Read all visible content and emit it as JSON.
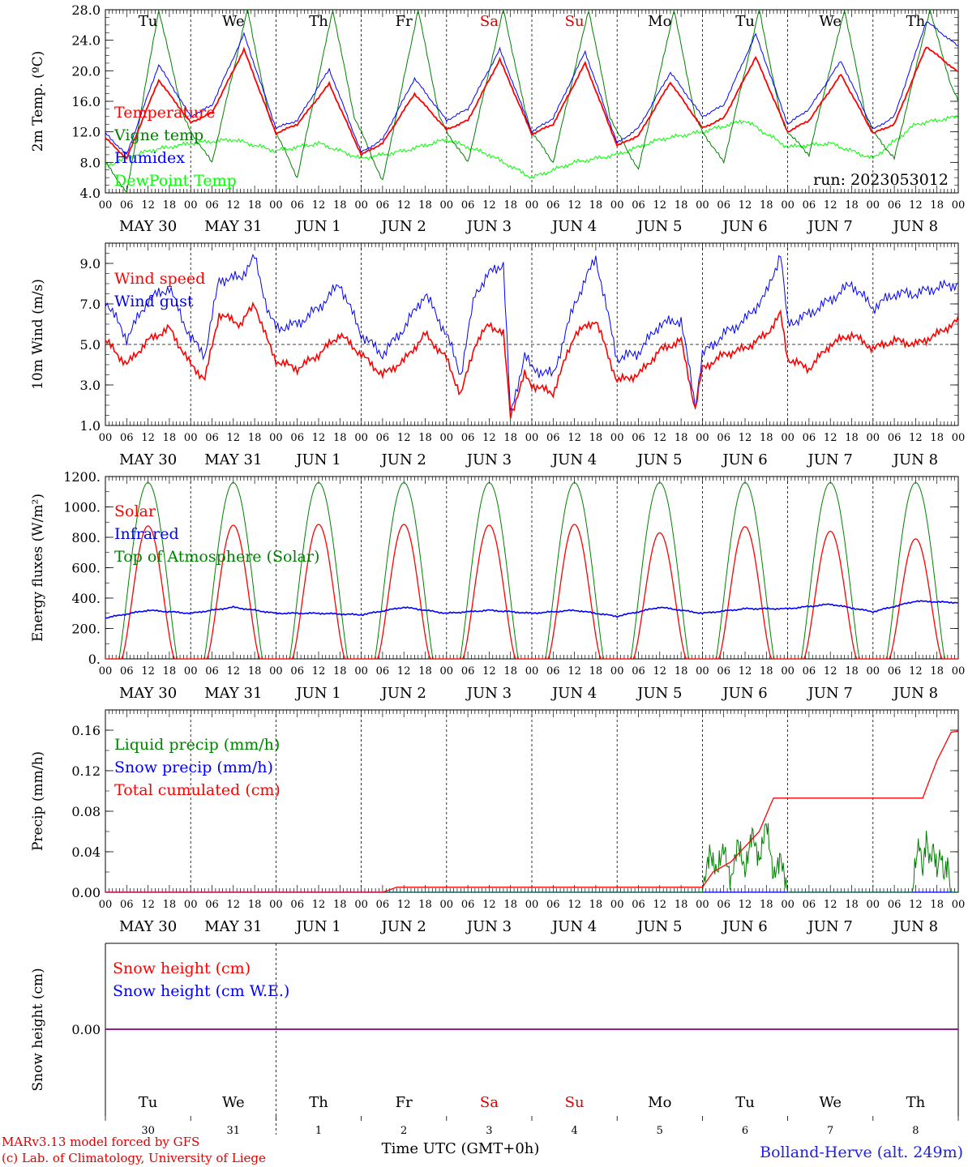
{
  "footer": {
    "model": "MARv3.13 model forced by GFS",
    "lab": "(c) Lab. of Climatology, University of Liege",
    "time_axis": "Time UTC (GMT+0h)",
    "station": "Bolland-Herve (alt. 249m)"
  },
  "x_axis": {
    "hour_ticks": [
      "00",
      "06",
      "12",
      "18"
    ],
    "date_labels": [
      "MAY 30",
      "MAY 31",
      "JUN  1",
      "JUN  2",
      "JUN  3",
      "JUN  4",
      "JUN  5",
      "JUN  6",
      "JUN  7",
      "JUN  8"
    ],
    "weekdays": [
      "Tu",
      "We",
      "Th",
      "Fr",
      "Sa",
      "Su",
      "Mo",
      "Tu",
      "We",
      "Th"
    ],
    "weekend_days": [
      4,
      5
    ],
    "day_numbers": [
      "30",
      "31",
      "1",
      "2",
      "3",
      "4",
      "5",
      "6",
      "7",
      "8"
    ],
    "weekend_color": "#e00000"
  },
  "colors": {
    "red": "#ff0000",
    "green": "#008000",
    "blue": "#0000ff",
    "lightgreen": "#00ff00",
    "purple": "#800080"
  },
  "chart_data": [
    {
      "type": "line",
      "ylabel": "2m Temp. (ºC)",
      "ylim": [
        4,
        28
      ],
      "yticks": [
        "4.0",
        "8.0",
        "12.0",
        "16.0",
        "20.0",
        "24.0",
        "28.0"
      ],
      "run_label": "run: 2023053012",
      "x_unit": "hours since MAY 30 00 UTC",
      "series": [
        {
          "name": "Temperature",
          "color": "#ff0000",
          "x": [
            0,
            6,
            15,
            24,
            30,
            39,
            48,
            54,
            63,
            72,
            78,
            87,
            96,
            102,
            111,
            120,
            126,
            135,
            144,
            150,
            159,
            168,
            174,
            183,
            192,
            198,
            207,
            216,
            222,
            231,
            240
          ],
          "values": [
            11.2,
            8.5,
            18.8,
            13.2,
            14.5,
            22.8,
            11.8,
            13,
            18.3,
            9,
            10.5,
            17,
            12.3,
            13.5,
            21.5,
            11.7,
            13,
            21,
            10.2,
            11.5,
            18.5,
            12.5,
            13.8,
            21.8,
            12,
            13.5,
            19.5,
            11.8,
            13,
            23.2,
            19.8
          ]
        },
        {
          "name": "Vigne temp",
          "color": "#008000",
          "x": [
            0,
            6,
            15,
            22,
            24,
            30,
            40,
            46,
            48,
            54,
            64,
            70,
            72,
            78,
            88,
            94,
            96,
            102,
            112,
            118,
            120,
            126,
            136,
            142,
            144,
            150,
            160,
            166,
            168,
            174,
            184,
            190,
            192,
            198,
            208,
            214,
            216,
            222,
            232,
            238,
            240
          ],
          "values": [
            8,
            4,
            28,
            14,
            12,
            8,
            28,
            14,
            12,
            6,
            28,
            14,
            12,
            5.5,
            28,
            14,
            12,
            8,
            28,
            15,
            12,
            8,
            28,
            14,
            12,
            7,
            28,
            14,
            12,
            8,
            28,
            14,
            12,
            9,
            28,
            14,
            12,
            8.5,
            28,
            18,
            16
          ]
        },
        {
          "name": "Humidex",
          "color": "#0000ff",
          "x": [
            0,
            6,
            15,
            24,
            30,
            39,
            48,
            54,
            63,
            72,
            78,
            87,
            96,
            102,
            111,
            120,
            126,
            135,
            144,
            150,
            159,
            168,
            174,
            183,
            192,
            198,
            207,
            216,
            222,
            231,
            240
          ],
          "values": [
            11.8,
            9,
            20.8,
            14,
            15.5,
            24.8,
            12.5,
            13.5,
            20.2,
            9.3,
            11,
            19,
            13.5,
            15,
            22.8,
            12,
            13.8,
            22.5,
            10.5,
            12.5,
            19.8,
            14,
            15.5,
            24.8,
            13,
            15,
            21.3,
            12.3,
            14,
            26.5,
            23.2
          ]
        },
        {
          "name": "DewPoint Temp",
          "color": "#00ff00",
          "x": [
            0,
            12,
            24,
            36,
            48,
            60,
            72,
            84,
            96,
            108,
            120,
            132,
            144,
            156,
            168,
            180,
            192,
            204,
            216,
            228,
            240
          ],
          "values": [
            7.5,
            9.5,
            10.5,
            11,
            9.5,
            10.5,
            8.5,
            9.5,
            11,
            9,
            6,
            8,
            9,
            11,
            12,
            13.5,
            10,
            10.5,
            8.5,
            13,
            14
          ]
        }
      ]
    },
    {
      "type": "line",
      "ylabel": "10m Wind (m/s)",
      "ylim": [
        1,
        10
      ],
      "yticks": [
        "1.0",
        "3.0",
        "5.0",
        "7.0",
        "9.0"
      ],
      "reference_line": 5.0,
      "x_unit": "hours since MAY 30 00 UTC",
      "series": [
        {
          "name": "Wind speed",
          "color": "#ff0000",
          "x": [
            0,
            6,
            12,
            18,
            24,
            28,
            32,
            38,
            42,
            46,
            48,
            54,
            60,
            66,
            72,
            78,
            84,
            90,
            96,
            100,
            104,
            108,
            112,
            114,
            118,
            120,
            126,
            132,
            138,
            144,
            150,
            156,
            162,
            166,
            168,
            174,
            180,
            186,
            190,
            192,
            198,
            204,
            210,
            216,
            222,
            228,
            234,
            240
          ],
          "values": [
            5.2,
            4,
            5.2,
            5.8,
            4,
            3.3,
            6.5,
            6,
            7,
            5,
            4.2,
            3.8,
            4.5,
            5.5,
            4.5,
            3.5,
            4.2,
            5.5,
            4.3,
            2.5,
            5,
            6,
            5.5,
            1.5,
            3.5,
            3,
            2.6,
            5.5,
            6.2,
            3.2,
            3.5,
            4.7,
            5.2,
            1.8,
            3.8,
            4.5,
            4.8,
            5.5,
            6.5,
            4.3,
            3.8,
            5,
            5.5,
            4.8,
            5.2,
            5,
            5.5,
            6.2
          ]
        },
        {
          "name": "Wind gust",
          "color": "#0000ff",
          "x": [
            0,
            6,
            12,
            18,
            24,
            28,
            32,
            38,
            42,
            46,
            48,
            54,
            60,
            66,
            72,
            78,
            84,
            90,
            96,
            100,
            104,
            108,
            112,
            114,
            118,
            120,
            126,
            132,
            138,
            144,
            150,
            156,
            162,
            166,
            168,
            174,
            180,
            186,
            190,
            192,
            198,
            204,
            210,
            216,
            222,
            228,
            234,
            240
          ],
          "values": [
            7.2,
            5.3,
            7.2,
            7.8,
            5.3,
            4.5,
            8.2,
            8.3,
            9.3,
            6.5,
            5.8,
            6,
            6.8,
            8,
            5.5,
            4.5,
            5.8,
            7.5,
            5.5,
            3.5,
            7.5,
            8.5,
            9,
            1.5,
            4.5,
            3.8,
            3.5,
            7,
            9.3,
            4.3,
            4.6,
            6,
            6.2,
            2,
            4.5,
            5.5,
            6.2,
            7.5,
            9.5,
            6,
            6.5,
            7.2,
            8,
            6.8,
            7.5,
            7.5,
            7.8,
            8
          ]
        }
      ]
    },
    {
      "type": "line",
      "ylabel": "Energy fluxes (W/m²)",
      "ylim": [
        0,
        1200
      ],
      "yticks": [
        "0.",
        "200.",
        "400.",
        "600.",
        "800.",
        "1000.",
        "1200."
      ],
      "x_unit": "hours since MAY 30 00 UTC",
      "daily_peaks": {
        "solar": [
          875,
          880,
          885,
          885,
          880,
          885,
          830,
          870,
          840,
          790
        ],
        "top_of_atmosphere": [
          1160,
          1160,
          1160,
          1160,
          1160,
          1160,
          1160,
          1160,
          1160,
          1160
        ]
      },
      "series": [
        {
          "name": "Solar",
          "color": "#ff0000"
        },
        {
          "name": "Infrared",
          "color": "#0000ff",
          "x": [
            0,
            12,
            24,
            36,
            48,
            60,
            72,
            84,
            96,
            108,
            120,
            132,
            144,
            156,
            168,
            180,
            192,
            204,
            216,
            228,
            240
          ],
          "values": [
            270,
            320,
            300,
            340,
            300,
            300,
            290,
            340,
            300,
            320,
            300,
            320,
            280,
            340,
            300,
            330,
            330,
            360,
            310,
            380,
            370
          ]
        },
        {
          "name": "Top of Atmosphere (Solar)",
          "color": "#008000"
        }
      ]
    },
    {
      "type": "line",
      "ylabel": "Precip (mm/h)",
      "ylim": [
        0,
        0.18
      ],
      "yticks": [
        "0.00",
        "0.04",
        "0.08",
        "0.12",
        "0.16"
      ],
      "x_unit": "hours since MAY 30 00 UTC",
      "series": [
        {
          "name": "Liquid precip (mm/h)",
          "color": "#008000",
          "x": [
            0,
            168,
            170,
            172,
            174,
            176,
            178,
            180,
            182,
            184,
            186,
            188,
            190,
            192,
            227,
            228,
            229,
            230,
            231,
            232,
            233,
            234,
            235,
            236,
            237,
            238,
            240
          ],
          "values": [
            0,
            0,
            0.04,
            0.02,
            0.045,
            0.01,
            0.05,
            0.02,
            0.06,
            0.03,
            0.07,
            0.015,
            0.035,
            0,
            0,
            0.03,
            0.05,
            0.02,
            0.055,
            0.03,
            0.045,
            0.02,
            0.04,
            0.015,
            0.03,
            0,
            0
          ]
        },
        {
          "name": "Snow precip (mm/h)",
          "color": "#0000ff",
          "x": [
            0,
            240
          ],
          "values": [
            0,
            0
          ]
        },
        {
          "name": "Total cumulated (cm)",
          "color": "#ff0000",
          "x": [
            0,
            78,
            82,
            168,
            171,
            176,
            180,
            184,
            187,
            188,
            216,
            230,
            234,
            238,
            240
          ],
          "values": [
            0,
            0,
            0.005,
            0.005,
            0.02,
            0.03,
            0.045,
            0.06,
            0.085,
            0.093,
            0.093,
            0.093,
            0.13,
            0.158,
            0.159
          ]
        }
      ]
    },
    {
      "type": "line",
      "ylabel": "Snow height (cm)",
      "yticks": [
        "0.00"
      ],
      "x_unit": "hours since MAY 30 00 UTC",
      "series": [
        {
          "name": "Snow height (cm)",
          "color": "#ff0000",
          "x": [
            0,
            240
          ],
          "values": [
            0,
            0
          ]
        },
        {
          "name": "Snow height (cm W.E.)",
          "color": "#0000ff",
          "x": [
            0,
            240
          ],
          "values": [
            0,
            0
          ]
        }
      ]
    }
  ]
}
